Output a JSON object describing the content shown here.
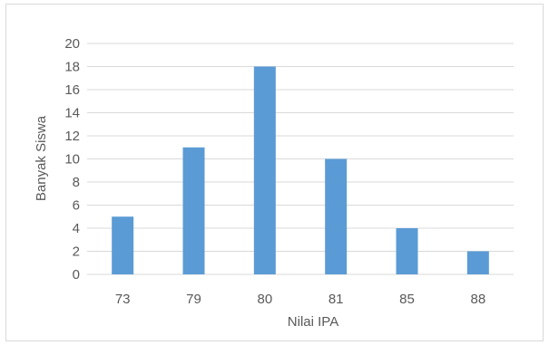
{
  "chart_data": {
    "type": "bar",
    "title": "",
    "xlabel": "Nilai IPA",
    "ylabel": "Banyak Siswa",
    "categories": [
      "73",
      "79",
      "80",
      "81",
      "85",
      "88"
    ],
    "series": [
      {
        "values": [
          5,
          11,
          18,
          10,
          4,
          2
        ]
      }
    ],
    "ylim": [
      0,
      20
    ],
    "yticks": [
      0,
      2,
      4,
      6,
      8,
      10,
      12,
      14,
      16,
      18,
      20
    ],
    "grid": "horizontal",
    "legend": "none",
    "bar_color": "#5b9bd5",
    "grid_color": "#d9d9d9",
    "text_color": "#595959"
  }
}
